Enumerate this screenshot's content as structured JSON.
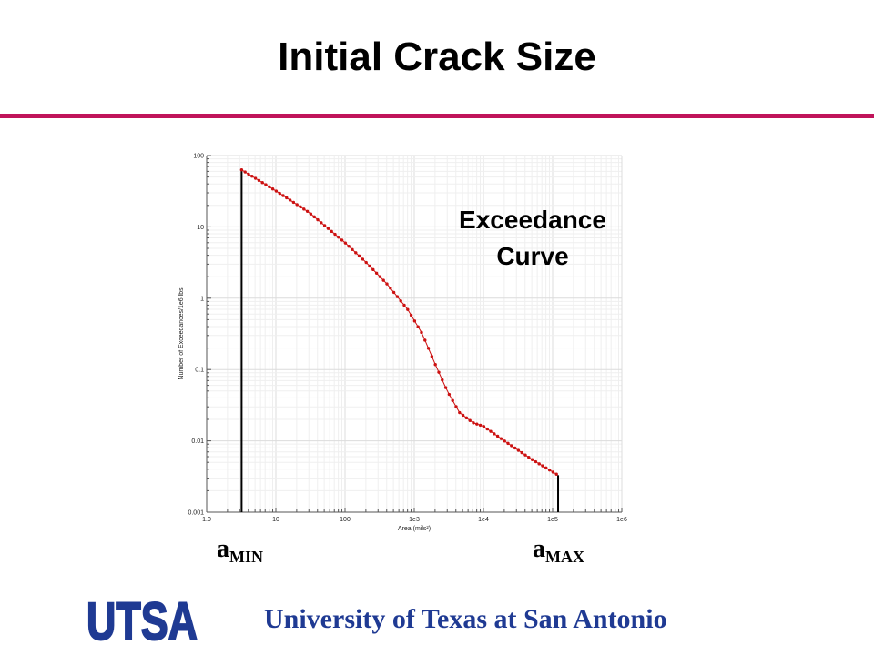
{
  "slide": {
    "title": "Initial Crack Size",
    "annotation_line1": "Exceedance",
    "annotation_line2": "Curve",
    "amin_base": "a",
    "amin_sub": "MIN",
    "amax_base": "a",
    "amax_sub": "MAX",
    "institution": "University of Texas at San Antonio",
    "logo_text": "UTSA"
  },
  "colors": {
    "accent": "#c0145a",
    "brand_blue": "#1f3a93",
    "curve": "#cc1111"
  },
  "chart_data": {
    "type": "scatter",
    "xlabel": "Area (mils²)",
    "ylabel": "Number of Exceedances/1e6 lbs",
    "xscale": "log",
    "yscale": "log",
    "xlim": [
      1,
      1000000
    ],
    "ylim": [
      0.001,
      100
    ],
    "xticks": [
      {
        "value": 1,
        "label": "1.0"
      },
      {
        "value": 10,
        "label": "10"
      },
      {
        "value": 100,
        "label": "100"
      },
      {
        "value": 1000,
        "label": "1e3"
      },
      {
        "value": 10000,
        "label": "1e4"
      },
      {
        "value": 100000,
        "label": "1e5"
      },
      {
        "value": 1000000,
        "label": "1e6"
      }
    ],
    "yticks": [
      {
        "value": 100,
        "label": "100"
      },
      {
        "value": 10,
        "label": "10"
      },
      {
        "value": 1,
        "label": "1"
      },
      {
        "value": 0.1,
        "label": "0.1"
      },
      {
        "value": 0.01,
        "label": "0.01"
      },
      {
        "value": 0.001,
        "label": "0.001"
      }
    ],
    "grid": true,
    "series": [
      {
        "color": "#cc1111",
        "x": [
          3.2,
          10,
          30,
          100,
          200,
          400,
          800,
          1300,
          2000,
          3000,
          4500,
          7000,
          10000,
          20000,
          50000,
          120000
        ],
        "y": [
          63,
          32,
          16,
          6,
          3.2,
          1.6,
          0.7,
          0.32,
          0.12,
          0.05,
          0.025,
          0.018,
          0.016,
          0.01,
          0.0055,
          0.0033
        ]
      }
    ],
    "bounds": [
      {
        "x": 3.2,
        "y_top": 63
      },
      {
        "x": 120000,
        "y_top": 0.0033
      }
    ]
  }
}
